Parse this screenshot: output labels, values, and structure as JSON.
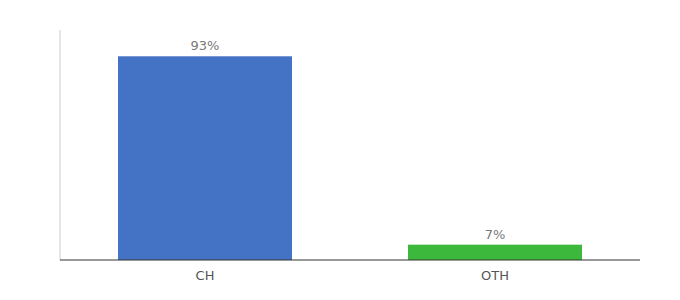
{
  "chart_data": {
    "type": "bar",
    "categories": [
      "CH",
      "OTH"
    ],
    "values": [
      93,
      7
    ],
    "value_labels": [
      "93%",
      "7%"
    ],
    "colors": [
      "#4472c4",
      "#3cb93c"
    ],
    "ylim": [
      0,
      105
    ],
    "data_labels": true,
    "tick_labels": "x"
  }
}
